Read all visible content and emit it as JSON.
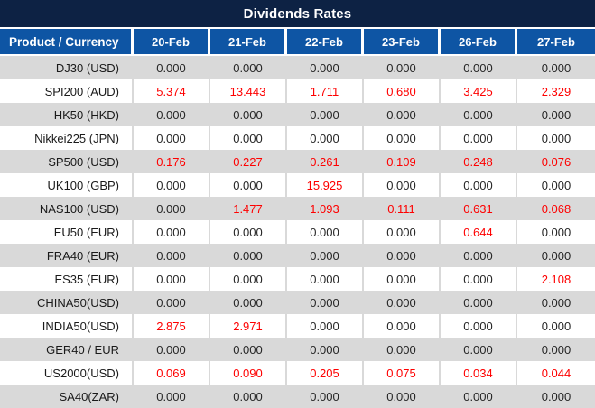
{
  "title": "Dividends Rates",
  "colors": {
    "title_bar_bg": "#0d2244",
    "header_bg": "#0e55a4",
    "row_alt_bg": "#d9d9d9",
    "row_bg": "#ffffff",
    "value_red": "#fe0000",
    "value_dark": "#262626"
  },
  "table": {
    "product_header": "Product / Currency",
    "date_headers": [
      "20-Feb",
      "21-Feb",
      "22-Feb",
      "23-Feb",
      "26-Feb",
      "27-Feb"
    ],
    "rows": [
      {
        "product": "DJ30 (USD)",
        "values": [
          "0.000",
          "0.000",
          "0.000",
          "0.000",
          "0.000",
          "0.000"
        ],
        "red": [
          false,
          false,
          false,
          false,
          false,
          false
        ]
      },
      {
        "product": "SPI200 (AUD)",
        "values": [
          "5.374",
          "13.443",
          "1.711",
          "0.680",
          "3.425",
          "2.329"
        ],
        "red": [
          true,
          true,
          true,
          true,
          true,
          true
        ]
      },
      {
        "product": "HK50 (HKD)",
        "values": [
          "0.000",
          "0.000",
          "0.000",
          "0.000",
          "0.000",
          "0.000"
        ],
        "red": [
          false,
          false,
          false,
          false,
          false,
          false
        ]
      },
      {
        "product": "Nikkei225 (JPN)",
        "values": [
          "0.000",
          "0.000",
          "0.000",
          "0.000",
          "0.000",
          "0.000"
        ],
        "red": [
          false,
          false,
          false,
          false,
          false,
          false
        ]
      },
      {
        "product": "SP500 (USD)",
        "values": [
          "0.176",
          "0.227",
          "0.261",
          "0.109",
          "0.248",
          "0.076"
        ],
        "red": [
          true,
          true,
          true,
          true,
          true,
          true
        ]
      },
      {
        "product": "UK100 (GBP)",
        "values": [
          "0.000",
          "0.000",
          "15.925",
          "0.000",
          "0.000",
          "0.000"
        ],
        "red": [
          false,
          false,
          true,
          false,
          false,
          false
        ]
      },
      {
        "product": "NAS100 (USD)",
        "values": [
          "0.000",
          "1.477",
          "1.093",
          "0.111",
          "0.631",
          "0.068"
        ],
        "red": [
          false,
          true,
          true,
          true,
          true,
          true
        ]
      },
      {
        "product": "EU50 (EUR)",
        "values": [
          "0.000",
          "0.000",
          "0.000",
          "0.000",
          "0.644",
          "0.000"
        ],
        "red": [
          false,
          false,
          false,
          false,
          true,
          false
        ]
      },
      {
        "product": "FRA40 (EUR)",
        "values": [
          "0.000",
          "0.000",
          "0.000",
          "0.000",
          "0.000",
          "0.000"
        ],
        "red": [
          false,
          false,
          false,
          false,
          false,
          false
        ]
      },
      {
        "product": "ES35 (EUR)",
        "values": [
          "0.000",
          "0.000",
          "0.000",
          "0.000",
          "0.000",
          "2.108"
        ],
        "red": [
          false,
          false,
          false,
          false,
          false,
          true
        ]
      },
      {
        "product": "CHINA50(USD)",
        "values": [
          "0.000",
          "0.000",
          "0.000",
          "0.000",
          "0.000",
          "0.000"
        ],
        "red": [
          false,
          false,
          false,
          false,
          false,
          false
        ]
      },
      {
        "product": "INDIA50(USD)",
        "values": [
          "2.875",
          "2.971",
          "0.000",
          "0.000",
          "0.000",
          "0.000"
        ],
        "red": [
          true,
          true,
          false,
          false,
          false,
          false
        ]
      },
      {
        "product": "GER40 / EUR",
        "values": [
          "0.000",
          "0.000",
          "0.000",
          "0.000",
          "0.000",
          "0.000"
        ],
        "red": [
          false,
          false,
          false,
          false,
          false,
          false
        ]
      },
      {
        "product": "US2000(USD)",
        "values": [
          "0.069",
          "0.090",
          "0.205",
          "0.075",
          "0.034",
          "0.044"
        ],
        "red": [
          true,
          true,
          true,
          true,
          true,
          true
        ]
      },
      {
        "product": "SA40(ZAR)",
        "values": [
          "0.000",
          "0.000",
          "0.000",
          "0.000",
          "0.000",
          "0.000"
        ],
        "red": [
          false,
          false,
          false,
          false,
          false,
          false
        ]
      }
    ]
  }
}
